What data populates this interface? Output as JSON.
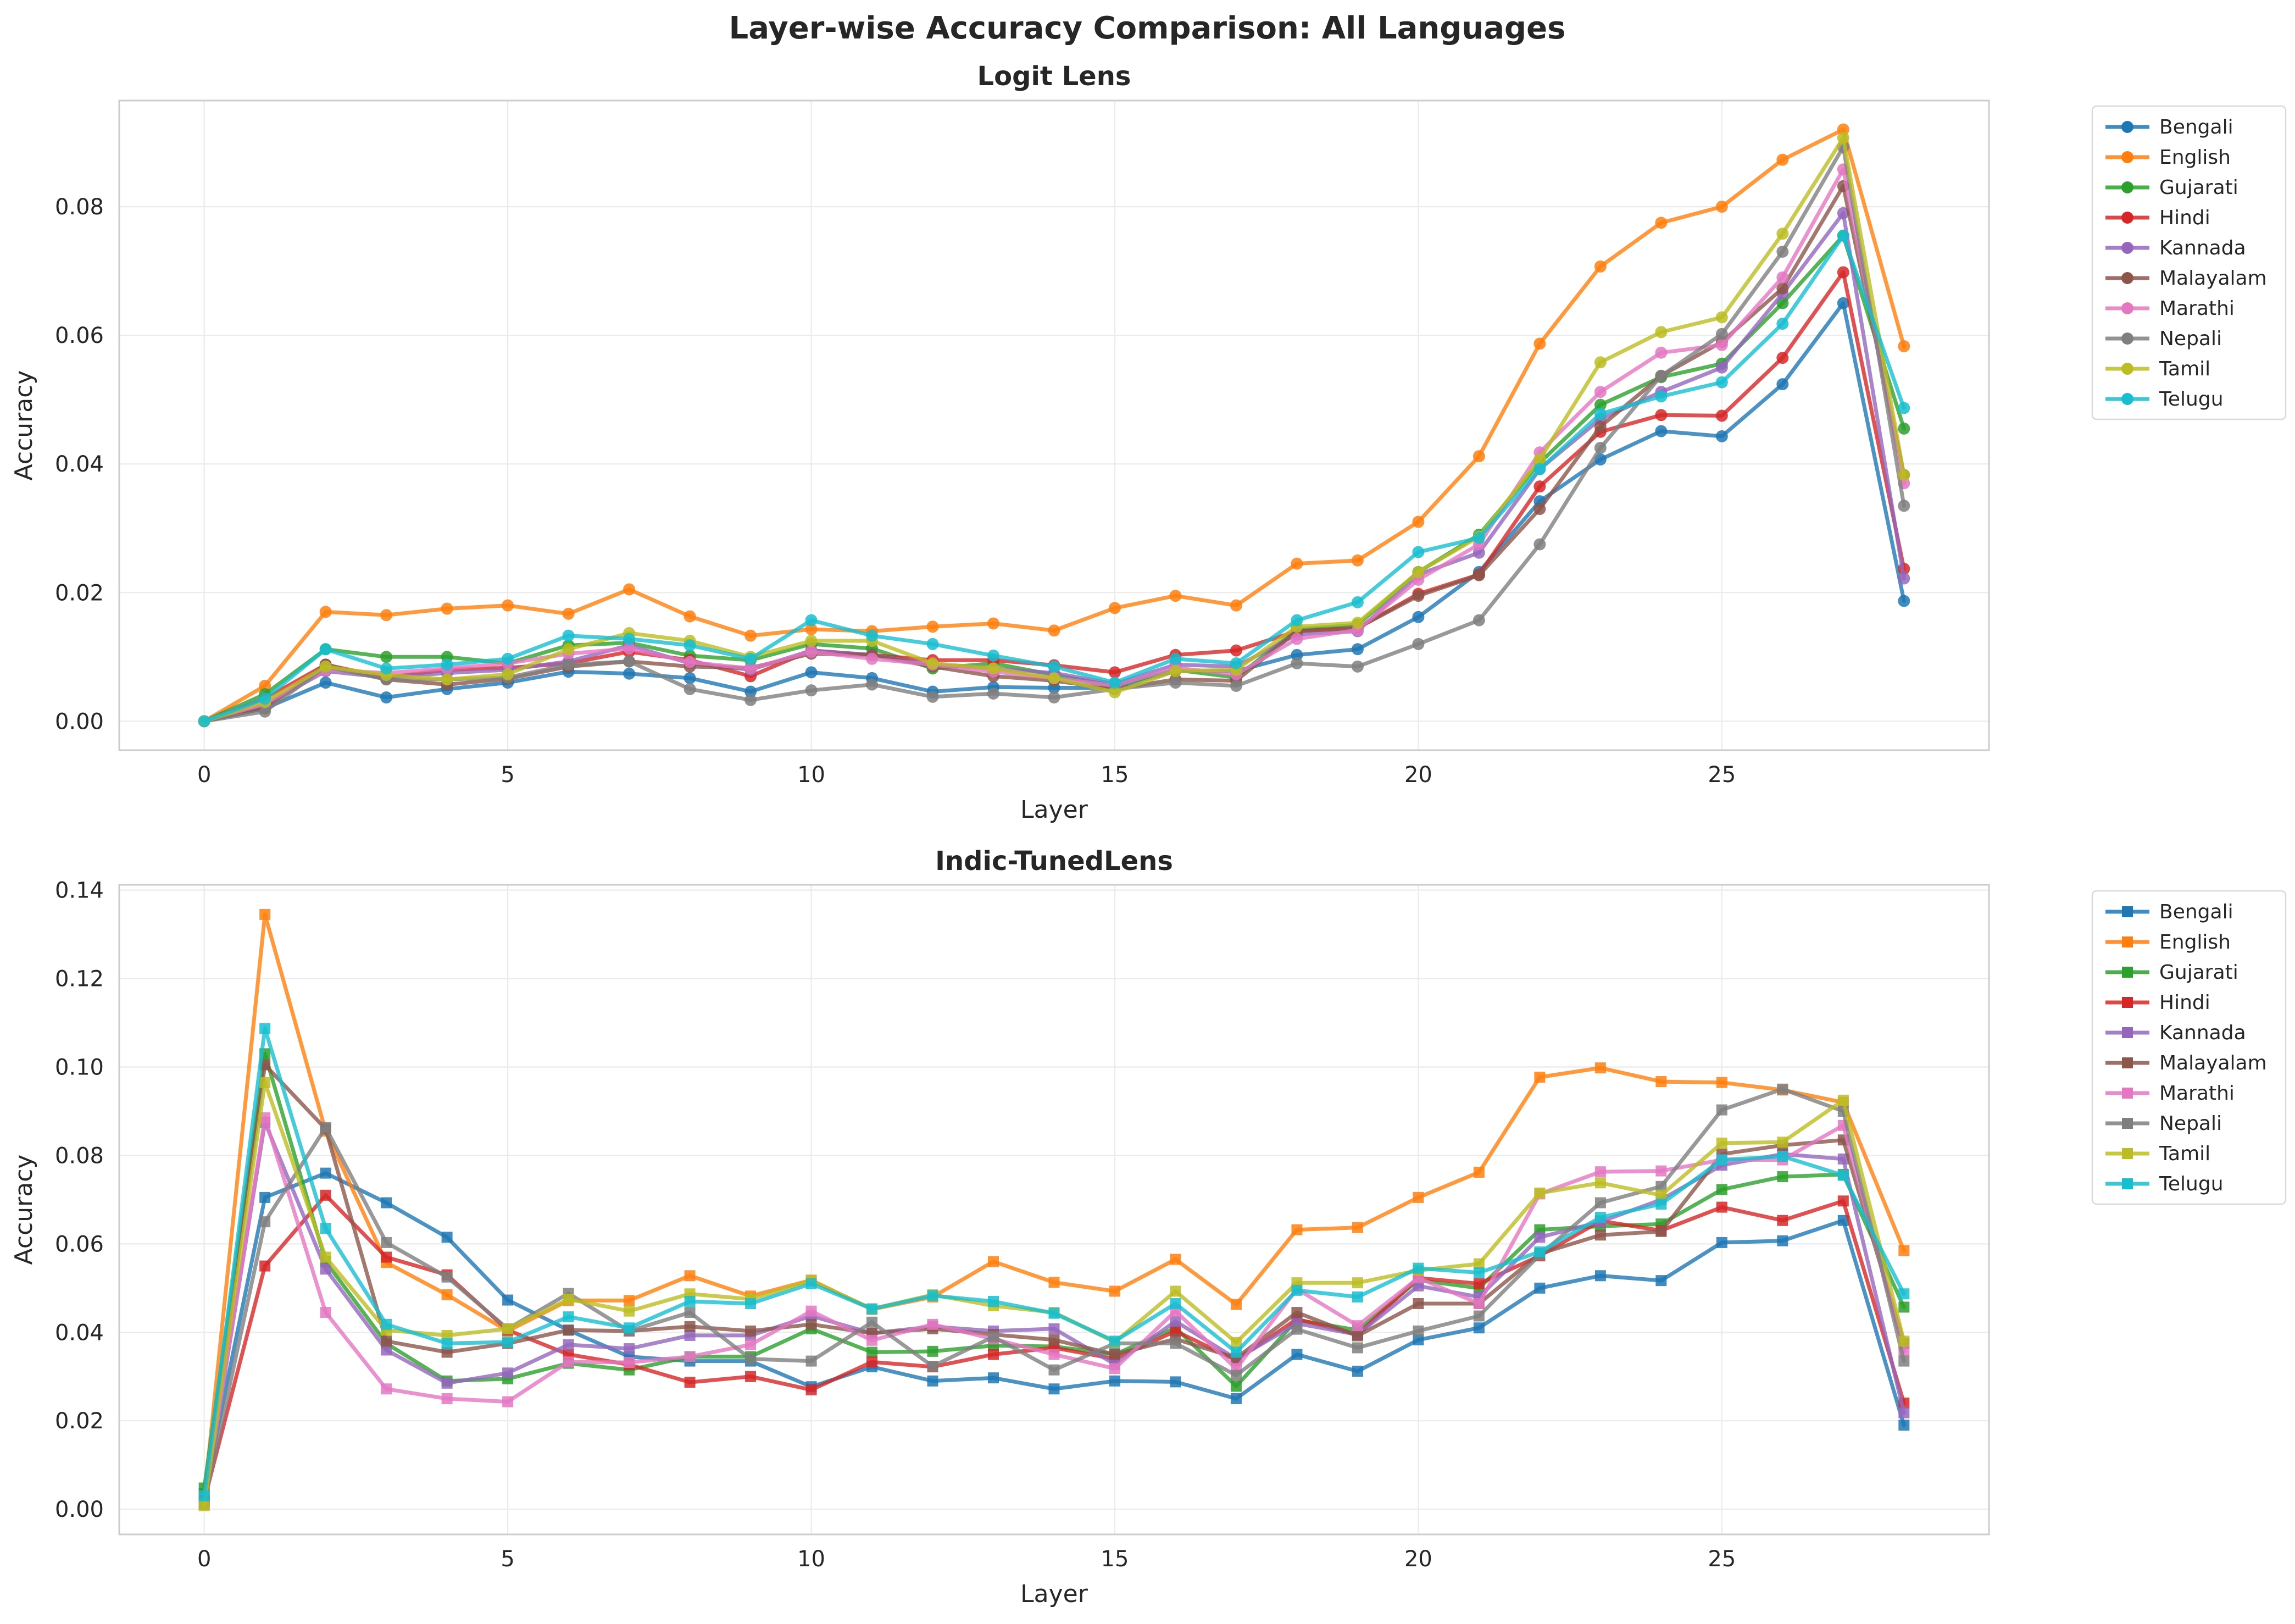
{
  "figure_title": "Layer-wise Accuracy Comparison: All Languages",
  "languages": [
    "Bengali",
    "English",
    "Gujarati",
    "Hindi",
    "Kannada",
    "Malayalam",
    "Marathi",
    "Nepali",
    "Tamil",
    "Telugu"
  ],
  "colors": {
    "Bengali": "#1f77b4",
    "English": "#ff7f0e",
    "Gujarati": "#2ca02c",
    "Hindi": "#d62728",
    "Kannada": "#9467bd",
    "Malayalam": "#8c564b",
    "Marathi": "#e377c2",
    "Nepali": "#7f7f7f",
    "Tamil": "#bcbd22",
    "Telugu": "#17becf"
  },
  "chart_data": [
    {
      "type": "line",
      "title": "Logit Lens",
      "xlabel": "Layer",
      "ylabel": "Accuracy",
      "xlim": [
        -1.4,
        29.4
      ],
      "ylim": [
        -0.0045,
        0.0965
      ],
      "xticks": [
        0,
        5,
        10,
        15,
        20,
        25
      ],
      "yticks": [
        0.0,
        0.02,
        0.04,
        0.06,
        0.08
      ],
      "ytick_labels": [
        "0.00",
        "0.02",
        "0.04",
        "0.06",
        "0.08"
      ],
      "marker": "circle",
      "grid": true,
      "legend": "outside-right",
      "x": [
        0,
        1,
        2,
        3,
        4,
        5,
        6,
        7,
        8,
        9,
        10,
        11,
        12,
        13,
        14,
        15,
        16,
        17,
        18,
        19,
        20,
        21,
        22,
        23,
        24,
        25,
        26,
        27,
        28
      ],
      "series": [
        {
          "name": "Bengali",
          "values": [
            0,
            0.002,
            0.006,
            0.0037,
            0.005,
            0.006,
            0.0077,
            0.0074,
            0.0067,
            0.0046,
            0.0076,
            0.0067,
            0.0046,
            0.0053,
            0.0052,
            0.0052,
            0.0078,
            0.0078,
            0.0103,
            0.0112,
            0.0162,
            0.0232,
            0.0342,
            0.0407,
            0.0451,
            0.0443,
            0.0524,
            0.065,
            0.0187
          ]
        },
        {
          "name": "English",
          "values": [
            0,
            0.0055,
            0.017,
            0.0165,
            0.0175,
            0.018,
            0.0167,
            0.0205,
            0.0163,
            0.0133,
            0.0143,
            0.014,
            0.0147,
            0.0152,
            0.0141,
            0.0176,
            0.0195,
            0.018,
            0.0245,
            0.025,
            0.031,
            0.0412,
            0.0587,
            0.0707,
            0.0775,
            0.08,
            0.0873,
            0.092,
            0.0583
          ]
        },
        {
          "name": "Gujarati",
          "values": [
            0,
            0.0042,
            0.0112,
            0.01,
            0.01,
            0.009,
            0.0118,
            0.0122,
            0.0102,
            0.0095,
            0.012,
            0.0113,
            0.0082,
            0.009,
            0.0072,
            0.0055,
            0.008,
            0.0068,
            0.0143,
            0.015,
            0.0232,
            0.029,
            0.0402,
            0.0492,
            0.0535,
            0.0556,
            0.065,
            0.0755,
            0.0455
          ]
        },
        {
          "name": "Hindi",
          "values": [
            0,
            0.0035,
            0.0088,
            0.0068,
            0.008,
            0.0083,
            0.009,
            0.0108,
            0.0095,
            0.007,
            0.011,
            0.0103,
            0.0095,
            0.0095,
            0.0087,
            0.0076,
            0.0103,
            0.011,
            0.014,
            0.0145,
            0.0198,
            0.0228,
            0.0365,
            0.045,
            0.0476,
            0.0475,
            0.0565,
            0.0698,
            0.0237
          ]
        },
        {
          "name": "Kannada",
          "values": [
            0,
            0.0025,
            0.0078,
            0.0068,
            0.0075,
            0.008,
            0.0093,
            0.0118,
            0.009,
            0.008,
            0.011,
            0.0103,
            0.0088,
            0.0082,
            0.0075,
            0.0058,
            0.0088,
            0.0085,
            0.0135,
            0.014,
            0.0228,
            0.0262,
            0.0392,
            0.047,
            0.0512,
            0.055,
            0.0665,
            0.079,
            0.0222
          ]
        },
        {
          "name": "Malayalam",
          "values": [
            0,
            0.002,
            0.0088,
            0.0065,
            0.0057,
            0.0066,
            0.0085,
            0.0093,
            0.0085,
            0.0083,
            0.0105,
            0.0103,
            0.0085,
            0.007,
            0.0063,
            0.005,
            0.0065,
            0.0063,
            0.014,
            0.0145,
            0.0195,
            0.0227,
            0.033,
            0.0458,
            0.0537,
            0.059,
            0.0673,
            0.0832,
            0.0383
          ]
        },
        {
          "name": "Marathi",
          "values": [
            0,
            0.0027,
            0.008,
            0.0075,
            0.0082,
            0.009,
            0.0105,
            0.0113,
            0.0092,
            0.0082,
            0.0108,
            0.0097,
            0.0088,
            0.0077,
            0.0067,
            0.0055,
            0.0083,
            0.0073,
            0.0128,
            0.0142,
            0.022,
            0.0275,
            0.0418,
            0.0512,
            0.0573,
            0.0585,
            0.069,
            0.0858,
            0.037
          ]
        },
        {
          "name": "Nepali",
          "values": [
            0,
            0.0015,
            0.0085,
            0.0065,
            0.0065,
            0.0068,
            0.0088,
            0.0093,
            0.005,
            0.0033,
            0.0048,
            0.0057,
            0.0038,
            0.0043,
            0.0037,
            0.005,
            0.006,
            0.0055,
            0.009,
            0.0085,
            0.012,
            0.0157,
            0.0275,
            0.0425,
            0.0537,
            0.0602,
            0.073,
            0.0893,
            0.0335
          ]
        },
        {
          "name": "Tamil",
          "values": [
            0,
            0.003,
            0.0085,
            0.0072,
            0.0065,
            0.0073,
            0.0112,
            0.0137,
            0.0125,
            0.01,
            0.0125,
            0.0125,
            0.009,
            0.0082,
            0.0067,
            0.0045,
            0.0078,
            0.008,
            0.0147,
            0.0153,
            0.0232,
            0.0287,
            0.0407,
            0.0558,
            0.0605,
            0.0628,
            0.0758,
            0.0907,
            0.0383
          ]
        },
        {
          "name": "Telugu",
          "values": [
            0,
            0.0035,
            0.0112,
            0.0082,
            0.0088,
            0.0097,
            0.0133,
            0.0128,
            0.0118,
            0.0097,
            0.0157,
            0.0133,
            0.012,
            0.0102,
            0.0085,
            0.006,
            0.0097,
            0.009,
            0.0157,
            0.0185,
            0.0263,
            0.0285,
            0.0392,
            0.0478,
            0.0505,
            0.0527,
            0.0618,
            0.0755,
            0.0487
          ]
        }
      ]
    },
    {
      "type": "line",
      "title": "Indic-TunedLens",
      "xlabel": "Layer",
      "ylabel": "Accuracy",
      "xlim": [
        -1.4,
        29.4
      ],
      "ylim": [
        -0.0057,
        0.1412
      ],
      "xticks": [
        0,
        5,
        10,
        15,
        20,
        25
      ],
      "yticks": [
        0.0,
        0.02,
        0.04,
        0.06,
        0.08,
        0.1,
        0.12,
        0.14
      ],
      "ytick_labels": [
        "0.00",
        "0.02",
        "0.04",
        "0.06",
        "0.08",
        "0.10",
        "0.12",
        "0.14"
      ],
      "marker": "square",
      "grid": true,
      "legend": "outside-right",
      "x": [
        0,
        1,
        2,
        3,
        4,
        5,
        6,
        7,
        8,
        9,
        10,
        11,
        12,
        13,
        14,
        15,
        16,
        17,
        18,
        19,
        20,
        21,
        22,
        23,
        24,
        25,
        26,
        27,
        28
      ],
      "series": [
        {
          "name": "Bengali",
          "values": [
            0.0035,
            0.0705,
            0.076,
            0.0693,
            0.0615,
            0.0473,
            0.0405,
            0.0345,
            0.0335,
            0.0335,
            0.0277,
            0.0322,
            0.029,
            0.0297,
            0.0272,
            0.029,
            0.0288,
            0.025,
            0.035,
            0.0312,
            0.0383,
            0.041,
            0.05,
            0.0528,
            0.0517,
            0.0603,
            0.0607,
            0.0653,
            0.019
          ]
        },
        {
          "name": "English",
          "values": [
            0.0025,
            0.1345,
            0.0855,
            0.0558,
            0.0485,
            0.0403,
            0.0472,
            0.0472,
            0.0528,
            0.0482,
            0.0518,
            0.0452,
            0.048,
            0.056,
            0.0513,
            0.0493,
            0.0565,
            0.0463,
            0.0632,
            0.0637,
            0.0705,
            0.0762,
            0.0977,
            0.0998,
            0.0967,
            0.0965,
            0.0948,
            0.092,
            0.0585
          ]
        },
        {
          "name": "Gujarati",
          "values": [
            0.0048,
            0.103,
            0.056,
            0.0375,
            0.029,
            0.0295,
            0.033,
            0.0315,
            0.0345,
            0.0345,
            0.0408,
            0.0355,
            0.0357,
            0.037,
            0.0368,
            0.035,
            0.041,
            0.0278,
            0.0428,
            0.0405,
            0.0518,
            0.05,
            0.0632,
            0.064,
            0.0645,
            0.0723,
            0.0752,
            0.0757,
            0.0457
          ]
        },
        {
          "name": "Hindi",
          "values": [
            0.002,
            0.055,
            0.071,
            0.057,
            0.053,
            0.0405,
            0.035,
            0.0327,
            0.0287,
            0.03,
            0.027,
            0.0333,
            0.0322,
            0.035,
            0.0365,
            0.034,
            0.0403,
            0.0337,
            0.043,
            0.0395,
            0.0523,
            0.051,
            0.0573,
            0.0652,
            0.063,
            0.0683,
            0.0653,
            0.0697,
            0.024
          ]
        },
        {
          "name": "Kannada",
          "values": [
            0.0015,
            0.0875,
            0.0543,
            0.036,
            0.0285,
            0.0308,
            0.0372,
            0.0363,
            0.0393,
            0.0393,
            0.0437,
            0.0398,
            0.0413,
            0.0403,
            0.0408,
            0.0328,
            0.0425,
            0.034,
            0.042,
            0.0395,
            0.0505,
            0.048,
            0.0615,
            0.065,
            0.07,
            0.0778,
            0.0803,
            0.0792,
            0.0218
          ]
        },
        {
          "name": "Malayalam",
          "values": [
            0.0018,
            0.1005,
            0.086,
            0.038,
            0.0355,
            0.0375,
            0.0405,
            0.0403,
            0.0413,
            0.0403,
            0.0418,
            0.0398,
            0.0408,
            0.0395,
            0.0383,
            0.035,
            0.0385,
            0.0342,
            0.0445,
            0.0392,
            0.0465,
            0.0465,
            0.0578,
            0.062,
            0.0628,
            0.0803,
            0.0823,
            0.0835,
            0.0375
          ]
        },
        {
          "name": "Marathi",
          "values": [
            0.001,
            0.0885,
            0.0445,
            0.0272,
            0.025,
            0.0243,
            0.0333,
            0.0332,
            0.0345,
            0.0372,
            0.0448,
            0.0382,
            0.0418,
            0.0385,
            0.035,
            0.0318,
            0.0448,
            0.0318,
            0.0498,
            0.0415,
            0.0523,
            0.0465,
            0.0713,
            0.0763,
            0.0765,
            0.079,
            0.079,
            0.0868,
            0.0358
          ]
        },
        {
          "name": "Nepali",
          "values": [
            0.0012,
            0.065,
            0.0863,
            0.0603,
            0.0525,
            0.0408,
            0.0488,
            0.0403,
            0.0445,
            0.034,
            0.0335,
            0.0423,
            0.0323,
            0.039,
            0.0315,
            0.0375,
            0.0375,
            0.0303,
            0.0407,
            0.0365,
            0.0403,
            0.0437,
            0.0575,
            0.0693,
            0.073,
            0.0903,
            0.095,
            0.09,
            0.0335
          ]
        },
        {
          "name": "Tamil",
          "values": [
            0.0008,
            0.0965,
            0.057,
            0.0405,
            0.0393,
            0.0408,
            0.0475,
            0.0448,
            0.0487,
            0.0475,
            0.0517,
            0.0453,
            0.0485,
            0.046,
            0.0445,
            0.0378,
            0.0493,
            0.0377,
            0.0512,
            0.0512,
            0.054,
            0.0555,
            0.0715,
            0.0738,
            0.071,
            0.0828,
            0.083,
            0.0925,
            0.038
          ]
        },
        {
          "name": "Telugu",
          "values": [
            0.003,
            0.1087,
            0.0635,
            0.0418,
            0.0375,
            0.0378,
            0.0435,
            0.041,
            0.047,
            0.0465,
            0.051,
            0.0453,
            0.0483,
            0.047,
            0.0443,
            0.038,
            0.0465,
            0.0355,
            0.0495,
            0.048,
            0.0545,
            0.0535,
            0.0582,
            0.066,
            0.069,
            0.079,
            0.0798,
            0.0755,
            0.0487
          ]
        }
      ]
    }
  ]
}
